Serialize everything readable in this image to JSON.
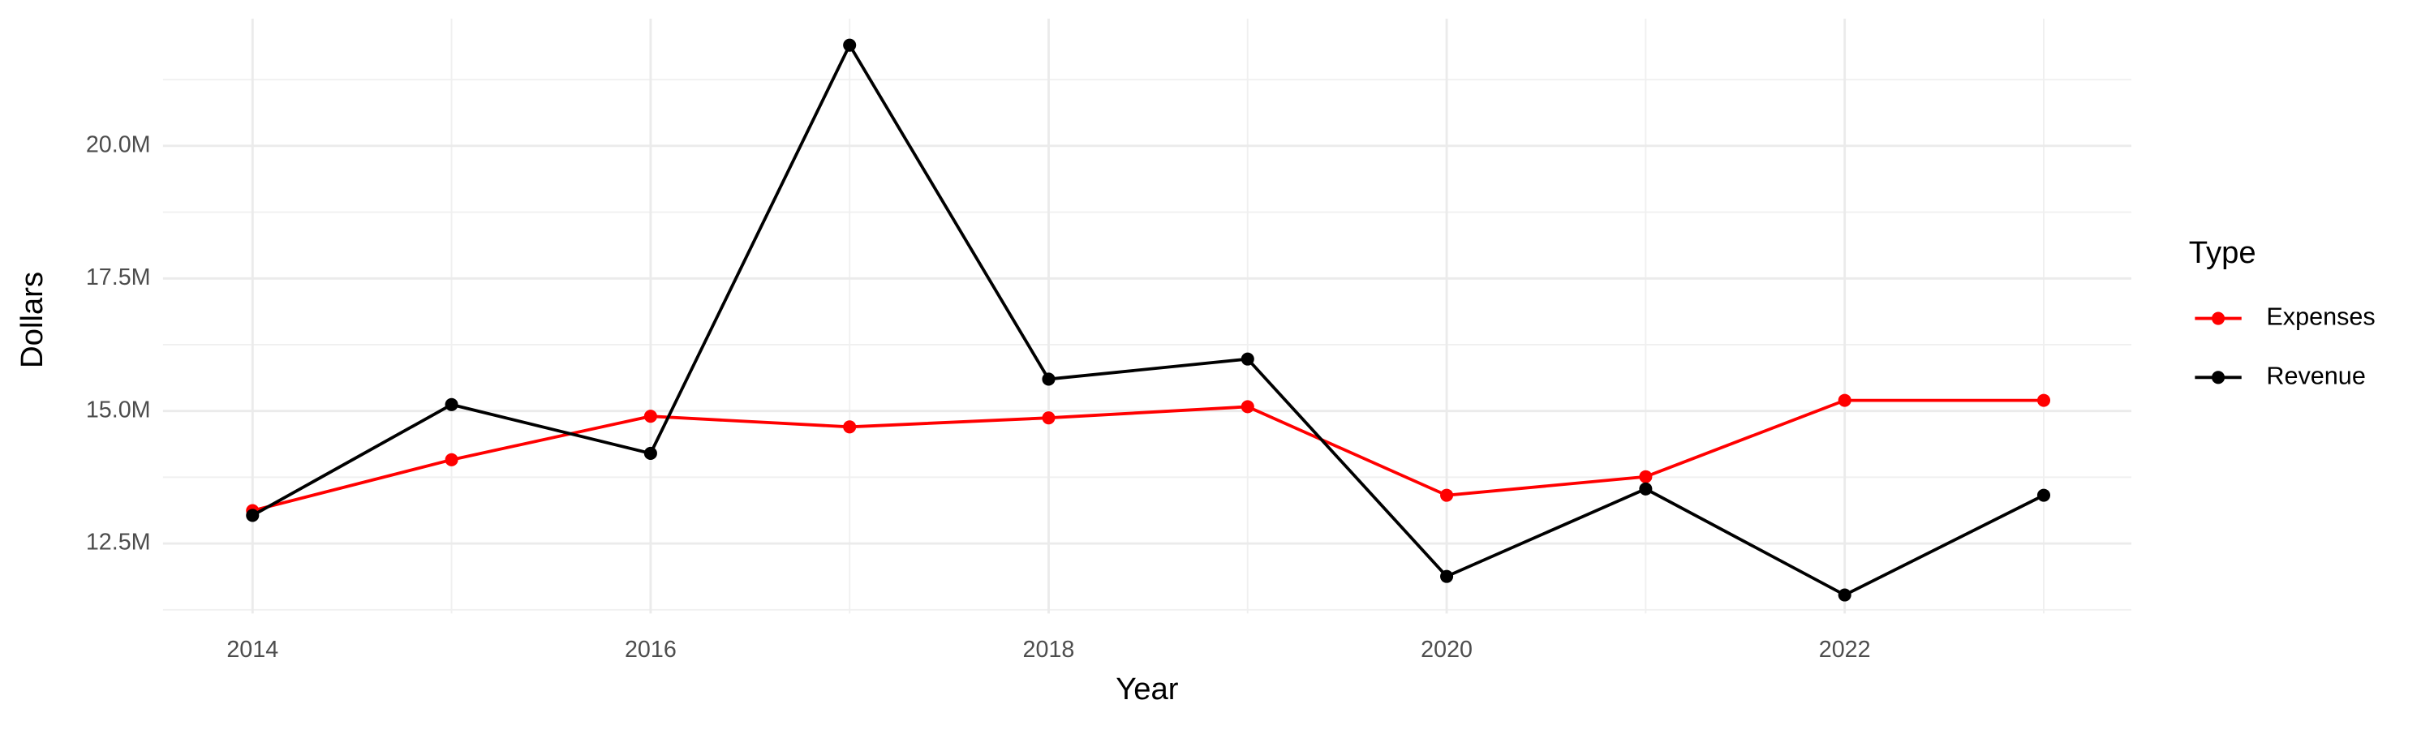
{
  "chart_data": {
    "type": "line",
    "x_label": "Year",
    "y_label": "Dollars",
    "legend_title": "Type",
    "x": [
      2014,
      2015,
      2016,
      2017,
      2018,
      2019,
      2020,
      2021,
      2022,
      2023
    ],
    "series": [
      {
        "name": "Expenses",
        "color": "#ff0000",
        "values": [
          13120000,
          14080000,
          14900000,
          14700000,
          14870000,
          15080000,
          13410000,
          13760000,
          15200000,
          15200000
        ]
      },
      {
        "name": "Revenue",
        "color": "#000000",
        "values": [
          13030000,
          15120000,
          14200000,
          21900000,
          15600000,
          15980000,
          11880000,
          13530000,
          11530000,
          13410000
        ]
      }
    ],
    "xlim": [
      2013.55,
      2023.44
    ],
    "ylim": [
      11180000,
      22400000
    ],
    "xticks": [
      2014,
      2016,
      2018,
      2020,
      2022
    ],
    "yticks": [
      {
        "value": 12500000,
        "label": "12.5M"
      },
      {
        "value": 15000000,
        "label": "15.0M"
      },
      {
        "value": 17500000,
        "label": "17.5M"
      },
      {
        "value": 20000000,
        "label": "20.0M"
      }
    ],
    "grid": true,
    "legend": "right"
  }
}
